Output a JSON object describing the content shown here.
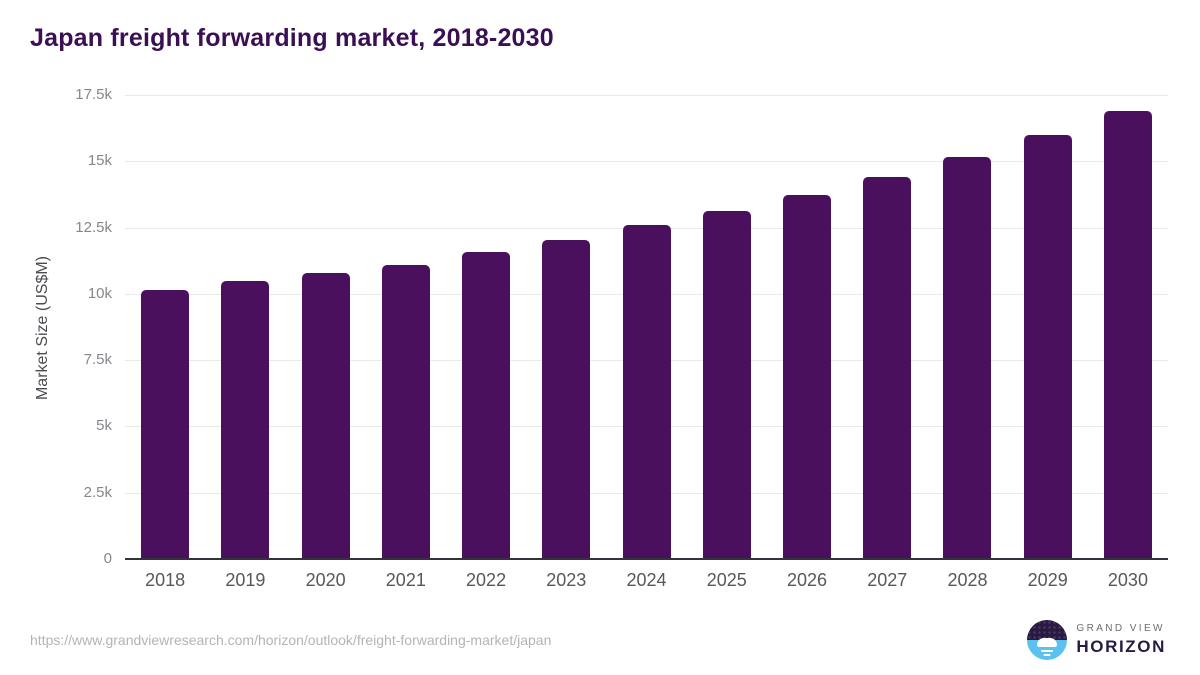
{
  "header": {
    "title": "Japan freight forwarding market, 2018-2030"
  },
  "chart_data": {
    "type": "bar",
    "title": "Japan freight forwarding market, 2018-2030",
    "categories": [
      "2018",
      "2019",
      "2020",
      "2021",
      "2022",
      "2023",
      "2024",
      "2025",
      "2026",
      "2027",
      "2028",
      "2029",
      "2030"
    ],
    "values": [
      10150,
      10480,
      10780,
      11080,
      11590,
      12030,
      12590,
      13110,
      13720,
      14390,
      15150,
      16000,
      16900
    ],
    "xlabel": "",
    "ylabel": "Market Size (US$M)",
    "ylim": [
      0,
      17500
    ],
    "yticks": [
      {
        "label": "0",
        "value": 0
      },
      {
        "label": "2.5k",
        "value": 2500
      },
      {
        "label": "5k",
        "value": 5000
      },
      {
        "label": "7.5k",
        "value": 7500
      },
      {
        "label": "10k",
        "value": 10000
      },
      {
        "label": "12.5k",
        "value": 12500
      },
      {
        "label": "15k",
        "value": 15000
      },
      {
        "label": "17.5k",
        "value": 17500
      }
    ],
    "grid": true,
    "legend": false,
    "bar_color": "#4a105e"
  },
  "colors": {
    "bar": "#4a105e",
    "title_text": "#3a0f53",
    "tick_label": "#85878b",
    "x_label": "#58585c",
    "gridline": "#e9e9ed",
    "axis_line": "#33333f",
    "source_text": "#b4b4b8",
    "logo_purple": "#2a1a43",
    "logo_blue": "#5bc2f0"
  },
  "footer": {
    "source_url": "https://www.grandviewresearch.com/horizon/outlook/freight-forwarding-market/japan",
    "brand": {
      "name": "GRAND VIEW",
      "product": "HORIZON"
    }
  }
}
